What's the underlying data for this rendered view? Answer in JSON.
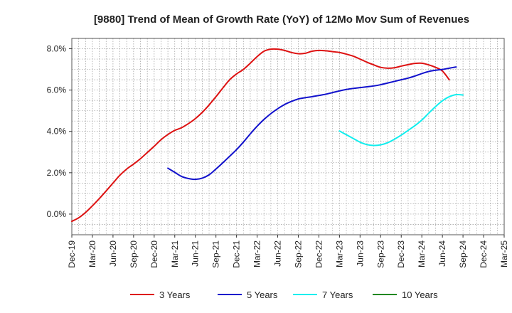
{
  "chart_data": {
    "type": "line",
    "title": "[9880]  Trend of Mean of Growth Rate (YoY) of 12Mo Mov Sum of Revenues",
    "xlabel": "",
    "ylabel": "",
    "ylim": [
      -1.0,
      8.5
    ],
    "yticks": [
      0,
      2,
      4,
      6,
      8
    ],
    "ytick_labels": [
      "0.0%",
      "2.0%",
      "4.0%",
      "6.0%",
      "8.0%"
    ],
    "xtick_labels": [
      "Dec-19",
      "Mar-20",
      "Jun-20",
      "Sep-20",
      "Dec-20",
      "Mar-21",
      "Jun-21",
      "Sep-21",
      "Dec-21",
      "Mar-22",
      "Jun-22",
      "Sep-22",
      "Dec-22",
      "Mar-23",
      "Jun-23",
      "Sep-23",
      "Dec-23",
      "Mar-24",
      "Jun-24",
      "Sep-24",
      "Dec-24",
      "Mar-25"
    ],
    "x_months": 63,
    "grid": true,
    "legend_position": "bottom",
    "series": [
      {
        "name": "3 Years",
        "color": "#dd1111",
        "start_month": 0,
        "values": [
          -0.35,
          -0.18,
          0.08,
          0.4,
          0.75,
          1.12,
          1.5,
          1.88,
          2.18,
          2.42,
          2.68,
          2.98,
          3.28,
          3.6,
          3.85,
          4.05,
          4.18,
          4.38,
          4.62,
          4.92,
          5.28,
          5.68,
          6.1,
          6.5,
          6.78,
          7.0,
          7.3,
          7.62,
          7.88,
          7.98,
          7.98,
          7.92,
          7.82,
          7.76,
          7.78,
          7.88,
          7.92,
          7.9,
          7.86,
          7.82,
          7.74,
          7.64,
          7.5,
          7.35,
          7.22,
          7.1,
          7.06,
          7.08,
          7.16,
          7.23,
          7.29,
          7.3,
          7.22,
          7.1,
          6.92,
          6.5
        ]
      },
      {
        "name": "5 Years",
        "color": "#1111cc",
        "start_month": 14,
        "values": [
          2.22,
          2.02,
          1.82,
          1.72,
          1.68,
          1.74,
          1.9,
          2.18,
          2.48,
          2.8,
          3.12,
          3.48,
          3.88,
          4.25,
          4.58,
          4.86,
          5.1,
          5.3,
          5.45,
          5.57,
          5.63,
          5.68,
          5.74,
          5.8,
          5.88,
          5.96,
          6.03,
          6.08,
          6.12,
          6.16,
          6.2,
          6.26,
          6.34,
          6.42,
          6.5,
          6.58,
          6.68,
          6.8,
          6.9,
          6.96,
          7.0,
          7.06,
          7.12
        ]
      },
      {
        "name": "7 Years",
        "color": "#11eeee",
        "start_month": 39,
        "values": [
          4.02,
          3.84,
          3.66,
          3.48,
          3.36,
          3.32,
          3.35,
          3.45,
          3.62,
          3.82,
          4.05,
          4.28,
          4.55,
          4.88,
          5.2,
          5.48,
          5.68,
          5.78,
          5.76
        ]
      },
      {
        "name": "10 Years",
        "color": "#228822",
        "start_month": 0,
        "values": []
      }
    ]
  }
}
